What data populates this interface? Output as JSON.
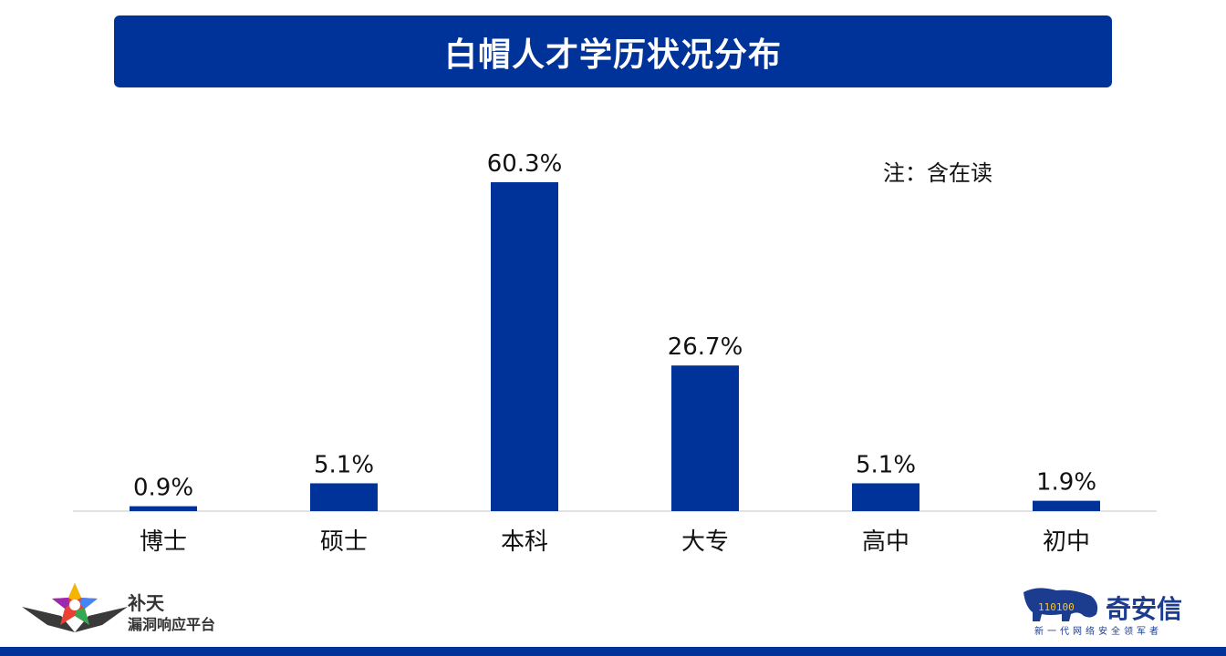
{
  "title": "白帽人才学历状况分布",
  "note": "注：含在读",
  "colors": {
    "bar": "#003399",
    "banner": "#003399",
    "axis": "#d9d9d9"
  },
  "chart_data": {
    "type": "bar",
    "title": "白帽人才学历状况分布",
    "categories": [
      "博士",
      "硕士",
      "本科",
      "大专",
      "高中",
      "初中"
    ],
    "values": [
      0.9,
      5.1,
      60.3,
      26.7,
      5.1,
      1.9
    ],
    "value_labels": [
      "0.9%",
      "5.1%",
      "60.3%",
      "26.7%",
      "5.1%",
      "1.9%"
    ],
    "ylim": [
      0,
      62
    ],
    "grid": false,
    "legend": "none"
  },
  "logos": {
    "left": {
      "name": "补天",
      "subtitle": "漏洞响应平台",
      "icon": "star-wings-icon"
    },
    "right": {
      "name": "奇安信",
      "tagline": "新一代网络安全领军者",
      "icon": "tiger-icon",
      "binary": "110100"
    }
  }
}
